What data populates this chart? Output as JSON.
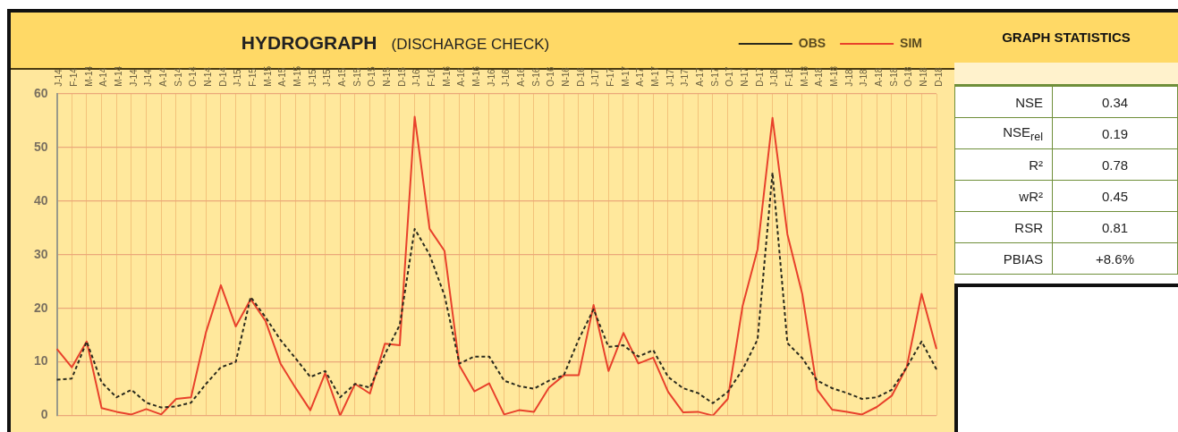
{
  "chart_data": [
    {
      "type": "line",
      "title": "HYDROGRAPH",
      "subtitle": "(DISCHARGE CHECK)",
      "categories": [
        "J-14",
        "F-14",
        "M-14",
        "A-14",
        "M-14",
        "J-14",
        "J-14",
        "A-14",
        "S-14",
        "O-14",
        "N-14",
        "D-14",
        "J-15",
        "F-15",
        "M-15",
        "A-15",
        "M-15",
        "J-15",
        "J-15",
        "A-15",
        "S-15",
        "O-15",
        "N-15",
        "D-15",
        "J-16",
        "F-16",
        "M-16",
        "A-16",
        "M-16",
        "J-16",
        "J-16",
        "A-16",
        "S-16",
        "O-16",
        "N-16",
        "D-16",
        "J-17",
        "F-17",
        "M-17",
        "A-17",
        "M-17",
        "J-17",
        "J-17",
        "A-17",
        "S-17",
        "O-17",
        "N-17",
        "D-17",
        "J-18",
        "F-18",
        "M-18",
        "A-18",
        "M-18",
        "J-18",
        "J-18",
        "A-18",
        "S-18",
        "O-18",
        "N-18",
        "D-18"
      ],
      "series": [
        {
          "name": "OBS",
          "color": "#2b2b1e",
          "line_style": "dashed",
          "values": [
            6.7,
            6.9,
            13.8,
            6.2,
            3.4,
            4.8,
            2.4,
            1.5,
            1.7,
            2.4,
            5.9,
            9,
            10,
            22.1,
            18.3,
            14.1,
            10.7,
            7.2,
            8.3,
            3.4,
            5.9,
            5.2,
            11.4,
            16.9,
            34.8,
            30,
            22.4,
            9.7,
            11,
            11,
            6.5,
            5.5,
            5,
            6.5,
            7.5,
            14.2,
            19.8,
            12.8,
            13.1,
            11,
            12.2,
            7.2,
            5.1,
            4.2,
            2.3,
            4.4,
            8.6,
            14.2,
            45.3,
            13.5,
            10.7,
            6.5,
            5.1,
            4.2,
            3.1,
            3.4,
            4.8,
            9,
            13.8,
            8.6
          ]
        },
        {
          "name": "SIM",
          "color": "#e8412b",
          "line_style": "solid",
          "values": [
            12.4,
            9,
            13.8,
            1.4,
            0.7,
            0.2,
            1.2,
            0.2,
            3.1,
            3.4,
            15.5,
            24.3,
            16.6,
            21.7,
            17.6,
            9.7,
            5.2,
            1,
            7.9,
            0,
            5.9,
            4.1,
            13.4,
            13.1,
            55.7,
            34.8,
            30.7,
            9.3,
            4.5,
            6,
            0.2,
            1,
            0.7,
            5.2,
            7.5,
            7.5,
            20.6,
            8.3,
            15.4,
            9.7,
            10.8,
            4.4,
            0.6,
            0.7,
            0,
            3.1,
            20.5,
            31,
            55.5,
            33.8,
            22.6,
            4.8,
            1.1,
            0.7,
            0.2,
            1.6,
            3.7,
            9,
            22.7,
            12.4
          ]
        }
      ],
      "ylim": [
        0,
        60
      ],
      "yticks": [
        0,
        10,
        20,
        30,
        40,
        50,
        60
      ],
      "grid": true,
      "legend": "top right",
      "marker": "none"
    },
    {
      "type": "other",
      "title": "GRAPH STATISTICS",
      "annotations": [
        "NSE",
        "0.34",
        "NSE$_{rel}$",
        "0.19",
        "R²",
        "0.78",
        "wR²",
        "0.45",
        "RSR",
        "0.81",
        "PBIAS",
        "+8.6%"
      ]
    }
  ]
}
